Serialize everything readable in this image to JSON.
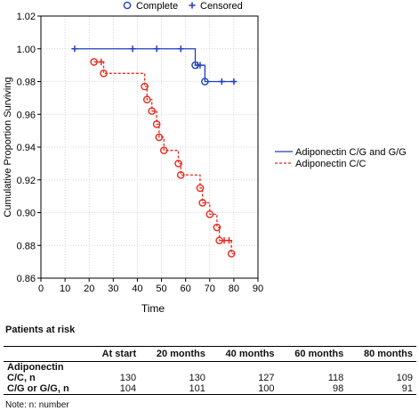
{
  "chart_data": {
    "type": "line",
    "subtype": "kaplan-meier-step",
    "title": "",
    "xlabel": "Time",
    "ylabel": "Cumulative Proportion Surviving",
    "xlim": [
      0,
      90
    ],
    "ylim": [
      0.86,
      1.02
    ],
    "xticks": [
      0,
      10,
      20,
      30,
      40,
      50,
      60,
      70,
      80,
      90
    ],
    "yticks": [
      "0.86",
      "0.88",
      "0.90",
      "0.92",
      "0.94",
      "0.96",
      "0.98",
      "1.00",
      "1.02"
    ],
    "grid": true,
    "top_legend": [
      {
        "label": "Complete",
        "marker": "circle"
      },
      {
        "label": "Censored",
        "marker": "plus"
      }
    ],
    "series": [
      {
        "name": "Adiponectin C/G and G/G",
        "color": "#1f3fbf",
        "line_style": "solid",
        "steps": [
          [
            13,
            1.0
          ],
          [
            64,
            0.99
          ],
          [
            68,
            0.98
          ],
          [
            80,
            0.98
          ]
        ],
        "events": [
          [
            64,
            0.99
          ],
          [
            68,
            0.98
          ]
        ],
        "censored": [
          [
            14,
            1.0
          ],
          [
            38,
            1.0
          ],
          [
            48,
            1.0
          ],
          [
            58,
            1.0
          ],
          [
            65,
            0.99
          ],
          [
            66,
            0.99
          ],
          [
            75,
            0.98
          ],
          [
            80,
            0.98
          ]
        ]
      },
      {
        "name": "Adiponectin C/C",
        "color": "#e8291c",
        "line_style": "dashed",
        "steps": [
          [
            22,
            0.992
          ],
          [
            26,
            0.985
          ],
          [
            43,
            0.977
          ],
          [
            44,
            0.969
          ],
          [
            46,
            0.962
          ],
          [
            48,
            0.954
          ],
          [
            49,
            0.946
          ],
          [
            51,
            0.938
          ],
          [
            57,
            0.93
          ],
          [
            58,
            0.923
          ],
          [
            66,
            0.915
          ],
          [
            67,
            0.906
          ],
          [
            70,
            0.899
          ],
          [
            73,
            0.891
          ],
          [
            74,
            0.883
          ],
          [
            79,
            0.875
          ],
          [
            80,
            0.875
          ]
        ],
        "events": [
          [
            22,
            0.992
          ],
          [
            26,
            0.985
          ],
          [
            43,
            0.977
          ],
          [
            44,
            0.969
          ],
          [
            46,
            0.962
          ],
          [
            48,
            0.954
          ],
          [
            49,
            0.946
          ],
          [
            51,
            0.938
          ],
          [
            57,
            0.93
          ],
          [
            58,
            0.923
          ],
          [
            66,
            0.915
          ],
          [
            67,
            0.906
          ],
          [
            70,
            0.899
          ],
          [
            73,
            0.891
          ],
          [
            74,
            0.883
          ],
          [
            79,
            0.875
          ]
        ],
        "censored": [
          [
            25,
            0.992
          ],
          [
            76,
            0.883
          ],
          [
            78,
            0.883
          ]
        ]
      }
    ],
    "right_legend": [
      {
        "label": "Adiponectin C/G and G/G",
        "color": "#1f3fbf",
        "line_style": "solid"
      },
      {
        "label": "Adiponectin C/C",
        "color": "#e8291c",
        "line_style": "dashed"
      }
    ]
  },
  "risk_table": {
    "title": "Patients at risk",
    "headers": [
      "",
      "At start",
      "20 months",
      "40 months",
      "60 months",
      "80 months"
    ],
    "group_label": "Adiponectin",
    "rows": [
      {
        "label": "C/C, n",
        "values": [
          "130",
          "130",
          "127",
          "118",
          "109"
        ]
      },
      {
        "label": "C/G or G/G, n",
        "values": [
          "104",
          "101",
          "100",
          "98",
          "91"
        ]
      }
    ],
    "note": "Note: n: number"
  }
}
